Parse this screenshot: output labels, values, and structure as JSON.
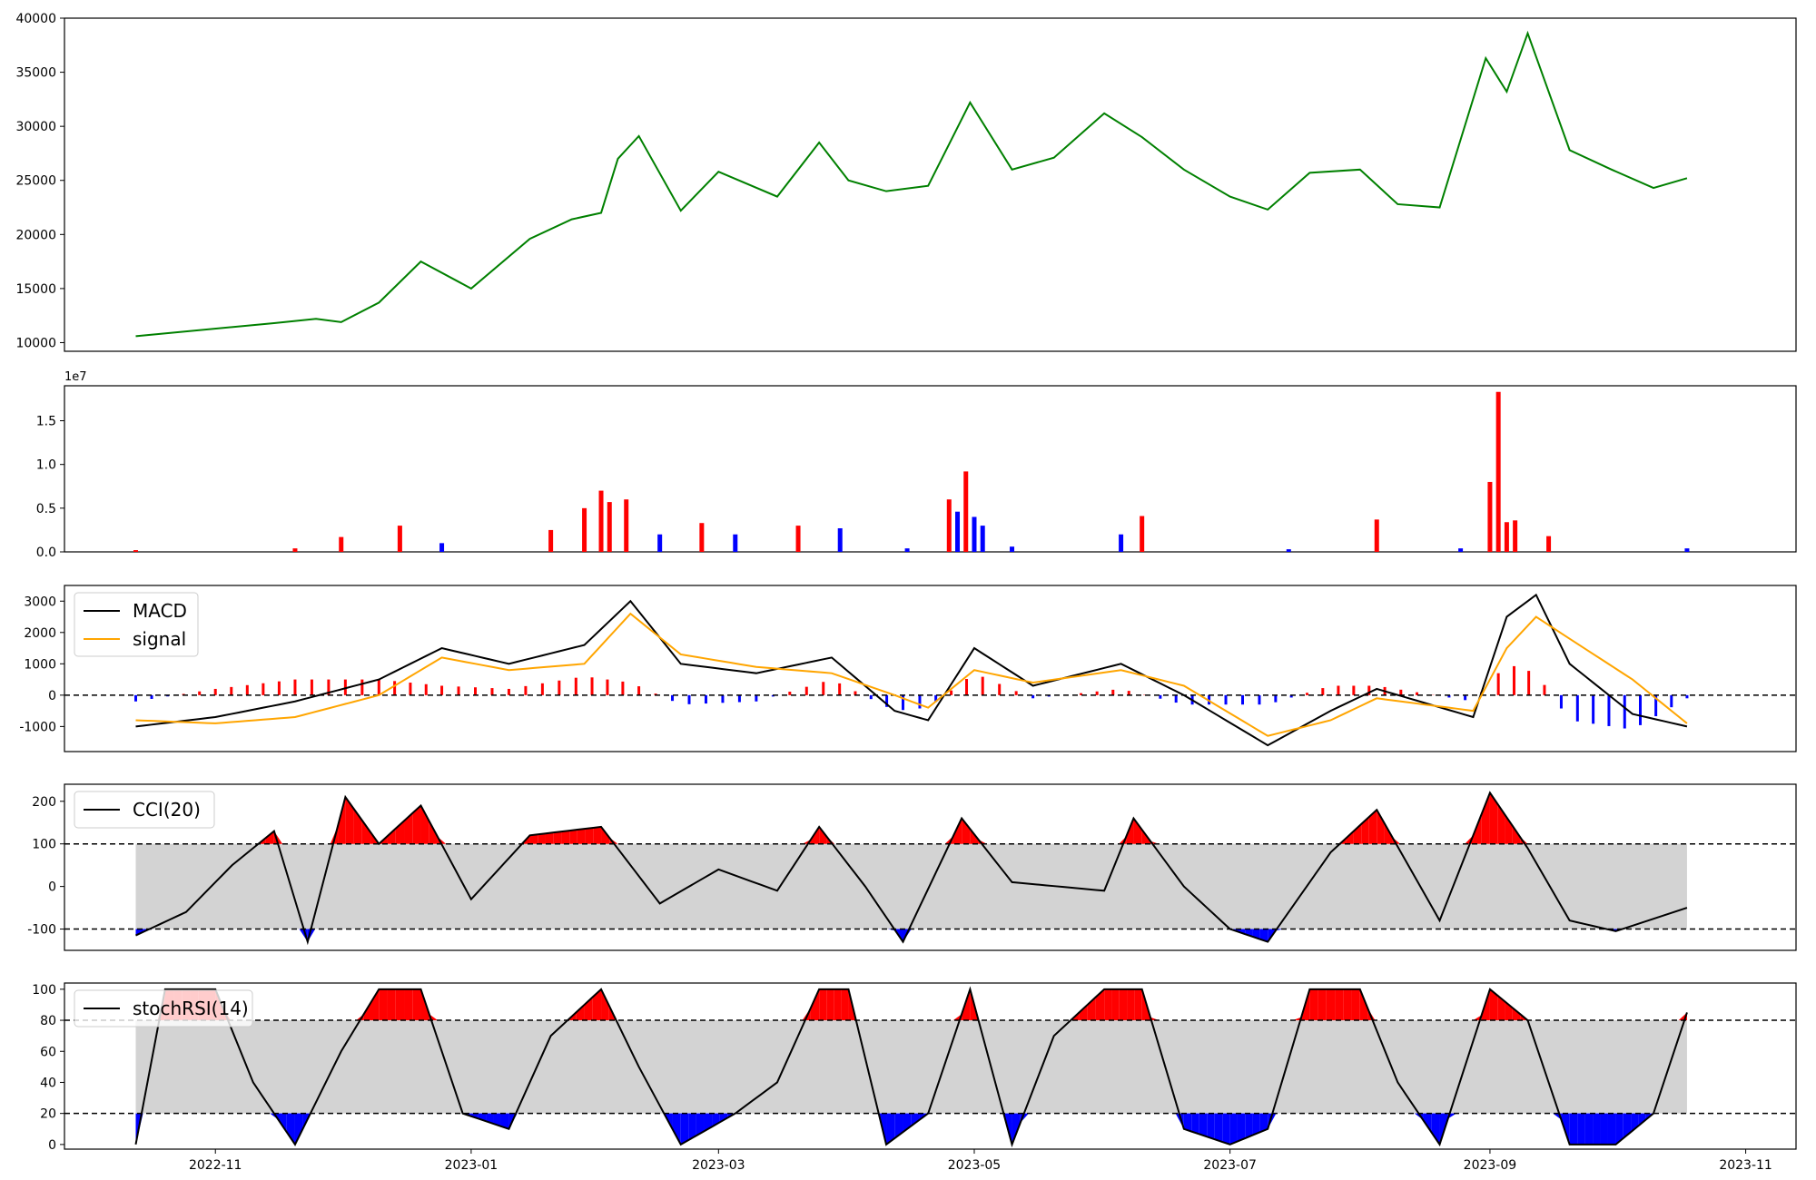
{
  "x_ticks": [
    "2022-11",
    "2023-01",
    "2023-03",
    "2023-05",
    "2023-07",
    "2023-09",
    "2023-11"
  ],
  "colors": {
    "price": "#008000",
    "up": "#ff0000",
    "down": "#0000ff",
    "macd": "#000000",
    "signal": "#ffa500",
    "band": "#d3d3d3",
    "line": "#000000"
  },
  "chart_data": [
    {
      "type": "line",
      "panel": "price",
      "title": "",
      "ylim": [
        9200,
        40000
      ],
      "yticks": [
        "10000",
        "15000",
        "20000",
        "25000",
        "30000",
        "35000",
        "40000"
      ],
      "ytick_values": [
        10000,
        15000,
        20000,
        25000,
        30000,
        35000,
        40000
      ],
      "x": [
        "2022-10-13",
        "2022-11-15",
        "2022-11-25",
        "2022-12-01",
        "2022-12-10",
        "2022-12-20",
        "2023-01-01",
        "2023-01-15",
        "2023-01-25",
        "2023-02-01",
        "2023-02-05",
        "2023-02-10",
        "2023-02-20",
        "2023-03-01",
        "2023-03-15",
        "2023-03-25",
        "2023-04-01",
        "2023-04-10",
        "2023-04-20",
        "2023-04-30",
        "2023-05-10",
        "2023-05-20",
        "2023-06-01",
        "2023-06-10",
        "2023-06-20",
        "2023-07-01",
        "2023-07-10",
        "2023-07-20",
        "2023-08-01",
        "2023-08-10",
        "2023-08-20",
        "2023-08-31",
        "2023-09-05",
        "2023-09-10",
        "2023-09-20",
        "2023-09-30",
        "2023-10-10",
        "2023-10-18"
      ],
      "values": [
        10600,
        11800,
        12200,
        11900,
        13700,
        17500,
        15000,
        19600,
        21400,
        22000,
        27000,
        29100,
        22200,
        25800,
        23500,
        28500,
        25000,
        24000,
        24500,
        32200,
        26000,
        27100,
        31200,
        29000,
        26000,
        23500,
        22300,
        25700,
        26000,
        22800,
        22500,
        36300,
        33200,
        38600,
        27800,
        26000,
        24300,
        25200
      ],
      "series": [
        {
          "name": "",
          "color": "#008000"
        }
      ]
    },
    {
      "type": "bar",
      "panel": "volume",
      "title": "",
      "ylim": [
        0,
        19000000
      ],
      "offset_label": "1e7",
      "yticks": [
        "0.0",
        "0.5",
        "1.0",
        "1.5"
      ],
      "ytick_values": [
        0,
        5000000,
        10000000,
        15000000
      ],
      "x": [
        "2022-10-13",
        "2022-11-20",
        "2022-12-01",
        "2022-12-15",
        "2022-12-25",
        "2023-01-20",
        "2023-01-28",
        "2023-02-01",
        "2023-02-03",
        "2023-02-07",
        "2023-02-15",
        "2023-02-25",
        "2023-03-05",
        "2023-03-20",
        "2023-03-30",
        "2023-04-15",
        "2023-04-25",
        "2023-04-27",
        "2023-04-29",
        "2023-05-01",
        "2023-05-03",
        "2023-05-10",
        "2023-06-05",
        "2023-06-10",
        "2023-07-15",
        "2023-08-05",
        "2023-08-25",
        "2023-09-01",
        "2023-09-03",
        "2023-09-05",
        "2023-09-07",
        "2023-09-15",
        "2023-10-18"
      ],
      "values": [
        200000,
        400000,
        1700000,
        3000000,
        1000000,
        2500000,
        5000000,
        7000000,
        5700000,
        6000000,
        2000000,
        3300000,
        2000000,
        3000000,
        2700000,
        400000,
        6000000,
        4600000,
        9200000,
        4000000,
        3000000,
        600000,
        2000000,
        4100000,
        300000,
        3700000,
        400000,
        8000000,
        18300000,
        3400000,
        3600000,
        1800000,
        400000
      ],
      "directions": [
        "up",
        "up",
        "up",
        "up",
        "down",
        "up",
        "up",
        "up",
        "up",
        "up",
        "down",
        "up",
        "down",
        "up",
        "down",
        "down",
        "up",
        "down",
        "up",
        "down",
        "down",
        "down",
        "down",
        "up",
        "down",
        "up",
        "down",
        "up",
        "up",
        "up",
        "up",
        "up",
        "down"
      ],
      "series": [
        {
          "name": "",
          "color": "#ff0000"
        },
        {
          "name": "",
          "color": "#0000ff"
        }
      ]
    },
    {
      "type": "line",
      "panel": "macd",
      "title": "",
      "ylim": [
        -1800,
        3500
      ],
      "yticks": [
        "-1000",
        "0",
        "1000",
        "2000",
        "3000"
      ],
      "ytick_values": [
        -1000,
        0,
        1000,
        2000,
        3000
      ],
      "legend_position": "top-left",
      "x": [
        "2022-10-13",
        "2022-11-01",
        "2022-11-20",
        "2022-12-10",
        "2022-12-25",
        "2023-01-10",
        "2023-01-28",
        "2023-02-08",
        "2023-02-20",
        "2023-03-10",
        "2023-03-28",
        "2023-04-12",
        "2023-04-20",
        "2023-05-01",
        "2023-05-15",
        "2023-06-05",
        "2023-06-20",
        "2023-07-10",
        "2023-07-25",
        "2023-08-05",
        "2023-08-28",
        "2023-09-05",
        "2023-09-12",
        "2023-09-20",
        "2023-10-05",
        "2023-10-18"
      ],
      "series": [
        {
          "name": "MACD",
          "color": "#000000",
          "values": [
            -1000,
            -700,
            -200,
            500,
            1500,
            1000,
            1600,
            3000,
            1000,
            700,
            1200,
            -500,
            -800,
            1500,
            300,
            1000,
            0,
            -1600,
            -500,
            200,
            -700,
            2500,
            3200,
            1000,
            -600,
            -1000
          ]
        },
        {
          "name": "signal",
          "color": "#ffa500",
          "values": [
            -800,
            -900,
            -700,
            0,
            1200,
            800,
            1000,
            2600,
            1300,
            900,
            700,
            0,
            -400,
            800,
            400,
            800,
            300,
            -1300,
            -800,
            -100,
            -500,
            1500,
            2500,
            1800,
            500,
            -900
          ]
        }
      ]
    },
    {
      "type": "line",
      "panel": "cci",
      "title": "",
      "ylim": [
        -150,
        240
      ],
      "yticks": [
        "-100",
        "0",
        "100",
        "200"
      ],
      "ytick_values": [
        -100,
        0,
        100,
        200
      ],
      "legend_position": "top-left",
      "bands": [
        100,
        -100
      ],
      "x": [
        "2022-10-13",
        "2022-10-25",
        "2022-11-05",
        "2022-11-15",
        "2022-11-23",
        "2022-12-02",
        "2022-12-10",
        "2022-12-20",
        "2023-01-01",
        "2023-01-15",
        "2023-02-01",
        "2023-02-15",
        "2023-03-01",
        "2023-03-15",
        "2023-03-25",
        "2023-04-05",
        "2023-04-14",
        "2023-04-28",
        "2023-05-10",
        "2023-06-01",
        "2023-06-08",
        "2023-06-20",
        "2023-07-01",
        "2023-07-10",
        "2023-07-25",
        "2023-08-05",
        "2023-08-20",
        "2023-09-01",
        "2023-09-10",
        "2023-09-20",
        "2023-10-01",
        "2023-10-18"
      ],
      "series": [
        {
          "name": "CCI(20)",
          "color": "#000000",
          "values": [
            -115,
            -60,
            50,
            130,
            -130,
            210,
            100,
            190,
            -30,
            120,
            140,
            -40,
            40,
            -10,
            140,
            0,
            -130,
            160,
            10,
            -10,
            160,
            0,
            -100,
            -130,
            80,
            180,
            -80,
            220,
            90,
            -80,
            -105,
            -50
          ]
        }
      ]
    },
    {
      "type": "line",
      "panel": "stochrsi",
      "title": "",
      "ylim": [
        -3,
        104
      ],
      "yticks": [
        "0",
        "20",
        "40",
        "60",
        "80",
        "100"
      ],
      "ytick_values": [
        0,
        20,
        40,
        60,
        80,
        100
      ],
      "legend_position": "top-left",
      "bands": [
        80,
        20
      ],
      "x": [
        "2022-10-13",
        "2022-10-20",
        "2022-11-01",
        "2022-11-10",
        "2022-11-20",
        "2022-12-01",
        "2022-12-10",
        "2022-12-20",
        "2022-12-30",
        "2023-01-10",
        "2023-01-20",
        "2023-02-01",
        "2023-02-10",
        "2023-02-20",
        "2023-03-05",
        "2023-03-15",
        "2023-03-25",
        "2023-04-01",
        "2023-04-10",
        "2023-04-20",
        "2023-04-30",
        "2023-05-10",
        "2023-05-20",
        "2023-06-01",
        "2023-06-10",
        "2023-06-20",
        "2023-07-01",
        "2023-07-10",
        "2023-07-20",
        "2023-08-01",
        "2023-08-10",
        "2023-08-20",
        "2023-09-01",
        "2023-09-10",
        "2023-09-20",
        "2023-10-01",
        "2023-10-10",
        "2023-10-18"
      ],
      "series": [
        {
          "name": "stochRSI(14)",
          "color": "#000000",
          "values": [
            0,
            100,
            100,
            40,
            0,
            60,
            100,
            100,
            20,
            10,
            70,
            100,
            50,
            0,
            20,
            40,
            100,
            100,
            0,
            20,
            100,
            0,
            70,
            100,
            100,
            10,
            0,
            10,
            100,
            100,
            40,
            0,
            100,
            80,
            0,
            0,
            20,
            85
          ]
        }
      ]
    }
  ]
}
